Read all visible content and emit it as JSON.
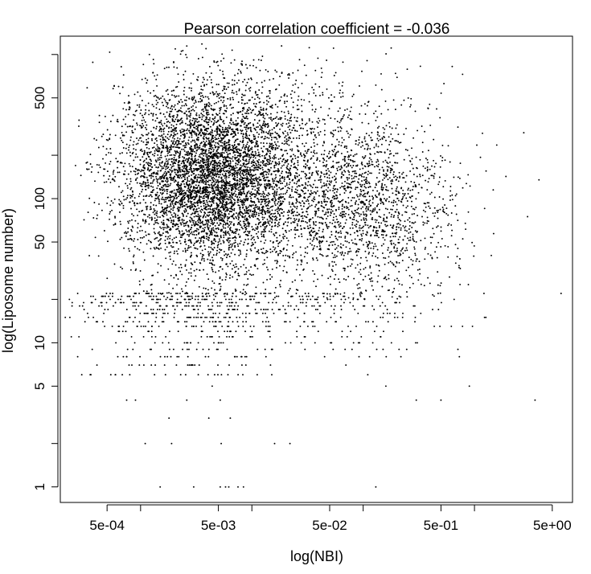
{
  "chart_data": {
    "type": "scatter",
    "title": "Pearson correlation coefficient = -0.036",
    "xlabel": "log(NBI)",
    "ylabel": "log(Liposome number)",
    "x_scale": "log",
    "y_scale": "log",
    "xlim": [
      0.00019,
      7.6
    ],
    "ylim": [
      0.78,
      1340
    ],
    "x_ticks": [
      0.0005,
      0.005,
      0.05,
      0.5,
      5
    ],
    "x_tick_labels": [
      "5e-04",
      "5e-03",
      "5e-02",
      "5e-01",
      "5e+00"
    ],
    "x_minor_ticks": [
      0.001,
      0.01,
      0.1,
      1
    ],
    "y_ticks": [
      1,
      5,
      10,
      50,
      100,
      500
    ],
    "y_tick_labels": [
      "1",
      "5",
      "10",
      "50",
      "100",
      "500"
    ],
    "y_minor_ticks": [
      2,
      20,
      200,
      1000
    ],
    "grid": false,
    "legend": "none",
    "point_color": "#000000",
    "series": [
      {
        "clusters": [
          {
            "count": 3800,
            "x_log10_center": -2.45,
            "x_log10_sd": 0.38,
            "y_log10_center": 2.18,
            "y_log10_sd": 0.32
          },
          {
            "count": 1700,
            "x_log10_center": -2.05,
            "x_log10_sd": 0.45,
            "y_log10_center": 2.05,
            "y_log10_sd": 0.3
          },
          {
            "count": 1300,
            "x_log10_center": -0.95,
            "x_log10_sd": 0.38,
            "y_log10_center": 1.92,
            "y_log10_sd": 0.3
          },
          {
            "count": 800,
            "x_log10_center": -1.6,
            "x_log10_sd": 0.6,
            "y_log10_center": 2.3,
            "y_log10_sd": 0.35
          }
        ],
        "low_count_points": [
          {
            "x": 0.0013,
            "y": 17
          },
          {
            "x": 0.0016,
            "y": 16
          },
          {
            "x": 0.002,
            "y": 15
          },
          {
            "x": 0.0025,
            "y": 14
          },
          {
            "x": 0.003,
            "y": 13
          },
          {
            "x": 0.0036,
            "y": 12
          },
          {
            "x": 0.0042,
            "y": 11
          },
          {
            "x": 0.005,
            "y": 10
          },
          {
            "x": 0.006,
            "y": 9
          },
          {
            "x": 0.007,
            "y": 8
          },
          {
            "x": 0.0021,
            "y": 7
          },
          {
            "x": 0.0033,
            "y": 6
          },
          {
            "x": 0.0044,
            "y": 5
          },
          {
            "x": 0.0026,
            "y": 4
          },
          {
            "x": 0.0052,
            "y": 4
          },
          {
            "x": 0.0018,
            "y": 3
          },
          {
            "x": 0.0041,
            "y": 3
          },
          {
            "x": 0.0064,
            "y": 3
          },
          {
            "x": 0.0009,
            "y": 4
          },
          {
            "x": 0.0011,
            "y": 2
          },
          {
            "x": 0.0019,
            "y": 2
          },
          {
            "x": 0.0053,
            "y": 2
          },
          {
            "x": 0.016,
            "y": 2
          },
          {
            "x": 0.022,
            "y": 2
          },
          {
            "x": 0.0015,
            "y": 1
          },
          {
            "x": 0.003,
            "y": 1
          },
          {
            "x": 0.0052,
            "y": 1
          },
          {
            "x": 0.0058,
            "y": 1
          },
          {
            "x": 0.0062,
            "y": 1
          },
          {
            "x": 0.0075,
            "y": 1
          },
          {
            "x": 0.0084,
            "y": 1
          },
          {
            "x": 0.13,
            "y": 1
          },
          {
            "x": 0.014,
            "y": 12
          },
          {
            "x": 0.02,
            "y": 10
          },
          {
            "x": 0.03,
            "y": 9
          },
          {
            "x": 0.045,
            "y": 8
          },
          {
            "x": 0.07,
            "y": 7
          },
          {
            "x": 0.11,
            "y": 6
          },
          {
            "x": 0.16,
            "y": 5
          },
          {
            "x": 0.3,
            "y": 4
          },
          {
            "x": 0.5,
            "y": 4
          },
          {
            "x": 0.9,
            "y": 5
          },
          {
            "x": 3.5,
            "y": 4
          },
          {
            "x": 0.0007,
            "y": 8
          },
          {
            "x": 0.00075,
            "y": 4
          },
          {
            "x": 0.0006,
            "y": 10
          },
          {
            "x": 0.0004,
            "y": 14
          }
        ],
        "outliers": [
          {
            "x": 0.00028,
            "y": 350
          },
          {
            "x": 0.00034,
            "y": 15
          },
          {
            "x": 0.00042,
            "y": 40
          },
          {
            "x": 6.0,
            "y": 22
          },
          {
            "x": 3.8,
            "y": 135
          },
          {
            "x": 3.0,
            "y": 75
          },
          {
            "x": 0.0012,
            "y": 1000
          }
        ]
      }
    ]
  }
}
